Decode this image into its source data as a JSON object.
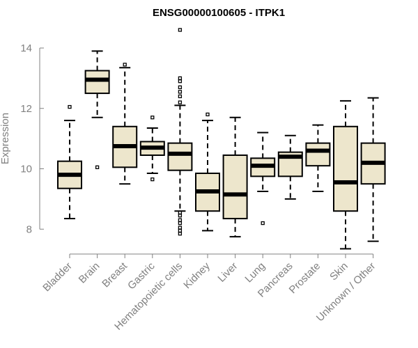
{
  "chart_data": {
    "type": "boxplot",
    "title": "ENSG00000100605 - ITPK1",
    "xlabel": "",
    "ylabel": "Expression",
    "ylim": [
      7.3,
      14.7
    ],
    "yticks": [
      8,
      10,
      12,
      14
    ],
    "ytick_labels": [
      "8",
      "10",
      "12",
      "14"
    ],
    "colors": {
      "box_fill": "#ede6cc",
      "stroke": "#000000",
      "axis": "#808080",
      "text": "#808080"
    },
    "categories": [
      "Bladder",
      "Brain",
      "Breast",
      "Gastric",
      "Hematopoietic cells",
      "Kidney",
      "Liver",
      "Lung",
      "Pancreas",
      "Prostate",
      "Skin",
      "Unknown / Other"
    ],
    "boxes": [
      {
        "category": "Bladder",
        "whisker_low": 8.35,
        "q1": 9.35,
        "median": 9.8,
        "q3": 10.25,
        "whisker_high": 11.6,
        "outliers": [
          12.05
        ]
      },
      {
        "category": "Brain",
        "whisker_low": 11.7,
        "q1": 12.5,
        "median": 12.95,
        "q3": 13.25,
        "whisker_high": 13.9,
        "outliers": [
          10.05
        ]
      },
      {
        "category": "Breast",
        "whisker_low": 9.5,
        "q1": 10.05,
        "median": 10.75,
        "q3": 11.4,
        "whisker_high": 13.35,
        "outliers": [
          13.45
        ]
      },
      {
        "category": "Gastric",
        "whisker_low": 9.85,
        "q1": 10.45,
        "median": 10.7,
        "q3": 10.9,
        "whisker_high": 11.35,
        "outliers": [
          11.7,
          9.65
        ]
      },
      {
        "category": "Hematopoietic cells",
        "whisker_low": 8.6,
        "q1": 9.95,
        "median": 10.5,
        "q3": 10.85,
        "whisker_high": 12.1,
        "outliers": [
          14.6,
          13.0,
          12.9,
          12.7,
          12.55,
          12.4,
          12.2,
          8.55,
          8.45,
          8.3,
          8.2,
          8.05,
          7.95,
          7.85
        ]
      },
      {
        "category": "Kidney",
        "whisker_low": 7.95,
        "q1": 8.6,
        "median": 9.25,
        "q3": 9.85,
        "whisker_high": 11.6,
        "outliers": [
          11.8
        ]
      },
      {
        "category": "Liver",
        "whisker_low": 7.75,
        "q1": 8.35,
        "median": 9.15,
        "q3": 10.45,
        "whisker_high": 11.7,
        "outliers": []
      },
      {
        "category": "Lung",
        "whisker_low": 9.25,
        "q1": 9.75,
        "median": 10.1,
        "q3": 10.35,
        "whisker_high": 11.2,
        "outliers": [
          8.2
        ]
      },
      {
        "category": "Pancreas",
        "whisker_low": 9.0,
        "q1": 9.75,
        "median": 10.4,
        "q3": 10.55,
        "whisker_high": 11.1,
        "outliers": []
      },
      {
        "category": "Prostate",
        "whisker_low": 9.25,
        "q1": 10.1,
        "median": 10.6,
        "q3": 10.85,
        "whisker_high": 11.45,
        "outliers": []
      },
      {
        "category": "Skin",
        "whisker_low": 7.35,
        "q1": 8.6,
        "median": 9.55,
        "q3": 11.4,
        "whisker_high": 12.25,
        "outliers": []
      },
      {
        "category": "Unknown / Other",
        "whisker_low": 7.6,
        "q1": 9.5,
        "median": 10.2,
        "q3": 10.85,
        "whisker_high": 12.35,
        "outliers": []
      }
    ]
  }
}
